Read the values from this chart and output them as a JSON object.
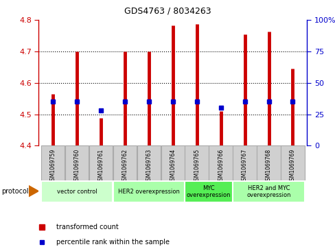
{
  "title": "GDS4763 / 8034263",
  "samples": [
    "GSM1069759",
    "GSM1069760",
    "GSM1069761",
    "GSM1069762",
    "GSM1069763",
    "GSM1069764",
    "GSM1069765",
    "GSM1069766",
    "GSM1069767",
    "GSM1069768",
    "GSM1069769"
  ],
  "transformed_count": [
    4.565,
    4.7,
    4.488,
    4.7,
    4.7,
    4.783,
    4.787,
    4.51,
    4.755,
    4.762,
    4.645
  ],
  "percentile_rank": [
    35,
    35,
    28,
    35,
    35,
    35,
    35,
    30,
    35,
    35,
    35
  ],
  "ylim": [
    4.4,
    4.8
  ],
  "yticks_left": [
    4.4,
    4.5,
    4.6,
    4.7,
    4.8
  ],
  "yticks_right": [
    0,
    25,
    50,
    75,
    100
  ],
  "group_defs": [
    {
      "label": "vector control",
      "indices": [
        0,
        1,
        2
      ],
      "color": "#ccffcc"
    },
    {
      "label": "HER2 overexpression",
      "indices": [
        3,
        4,
        5
      ],
      "color": "#aaffaa"
    },
    {
      "label": "MYC\noverexpression",
      "indices": [
        6,
        7
      ],
      "color": "#55ee55"
    },
    {
      "label": "HER2 and MYC\noverexpression",
      "indices": [
        8,
        9,
        10
      ],
      "color": "#aaffaa"
    }
  ],
  "bar_color": "#cc0000",
  "dot_color": "#0000cc",
  "label_bg_color": "#d0d0d0",
  "label_border_color": "#aaaaaa",
  "protocol_color": "#cc6600"
}
